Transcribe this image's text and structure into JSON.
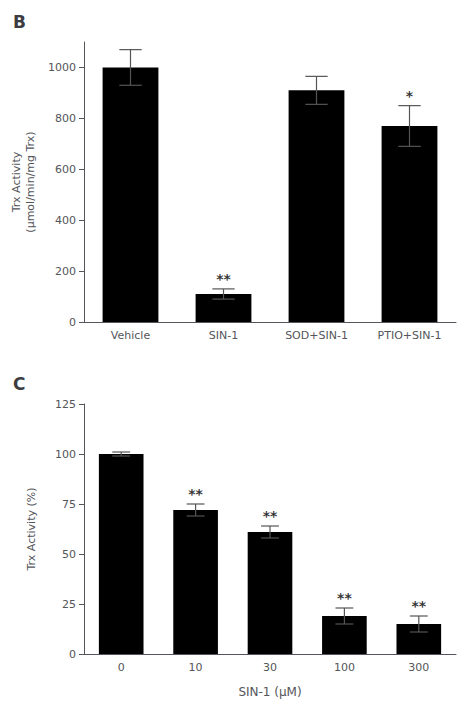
{
  "chart_data": [
    {
      "type": "bar",
      "title": "B",
      "categories": [
        "Vehicle",
        "SIN-1",
        "SOD+SIN-1",
        "PTIO+SIN-1"
      ],
      "values": [
        1000,
        110,
        910,
        770
      ],
      "errors": [
        70,
        20,
        55,
        80
      ],
      "color": "#000000",
      "ylabel": "Trx Activity\n(μmol/min/mg Trx)",
      "ylim": [
        0,
        1100
      ],
      "yticks": [
        0,
        200,
        400,
        600,
        800,
        1000
      ],
      "grid": false,
      "annotations": [
        {
          "category": "SIN-1",
          "text": "**"
        },
        {
          "category": "PTIO+SIN-1",
          "text": "*"
        }
      ]
    },
    {
      "type": "bar",
      "title": "C",
      "categories": [
        "0",
        "10",
        "30",
        "100",
        "300"
      ],
      "values": [
        100,
        72,
        61,
        19,
        15
      ],
      "errors": [
        1,
        3,
        3,
        4,
        4
      ],
      "color": "#000000",
      "xlabel": "SIN-1 (μM)",
      "ylabel": "Trx Activity (%)",
      "ylim": [
        0,
        125
      ],
      "yticks": [
        0,
        25,
        50,
        75,
        100,
        125
      ],
      "grid": false,
      "annotations": [
        {
          "category": "10",
          "text": "**"
        },
        {
          "category": "30",
          "text": "**"
        },
        {
          "category": "100",
          "text": "**"
        },
        {
          "category": "300",
          "text": "**"
        }
      ]
    }
  ]
}
